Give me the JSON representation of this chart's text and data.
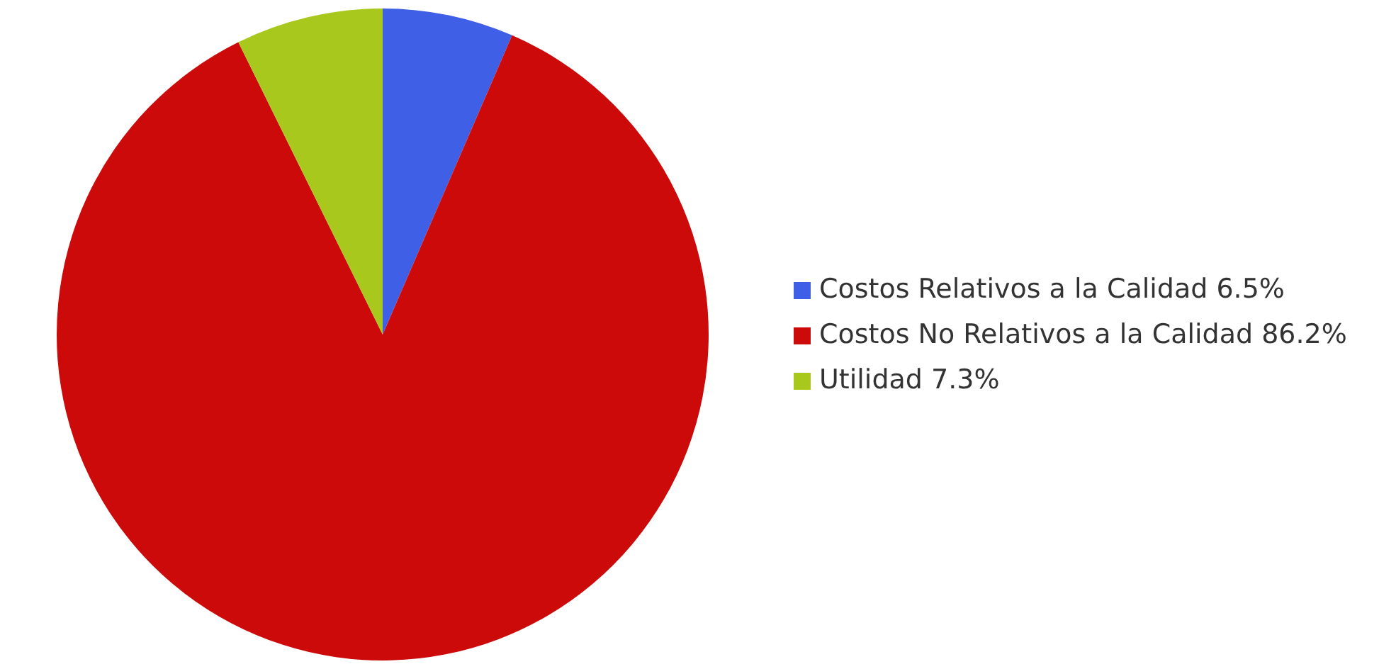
{
  "chart_data": {
    "type": "pie",
    "categories": [
      "Costos Relativos a la Calidad",
      "Costos No Relativos a la Calidad",
      "Utilidad"
    ],
    "values": [
      6.5,
      86.2,
      7.3
    ],
    "value_labels": [
      "6.5%",
      "86.2%",
      "7.3%"
    ],
    "colors": [
      "#3f5fe6",
      "#cc0a0a",
      "#a8c81e"
    ],
    "legend": "right"
  }
}
